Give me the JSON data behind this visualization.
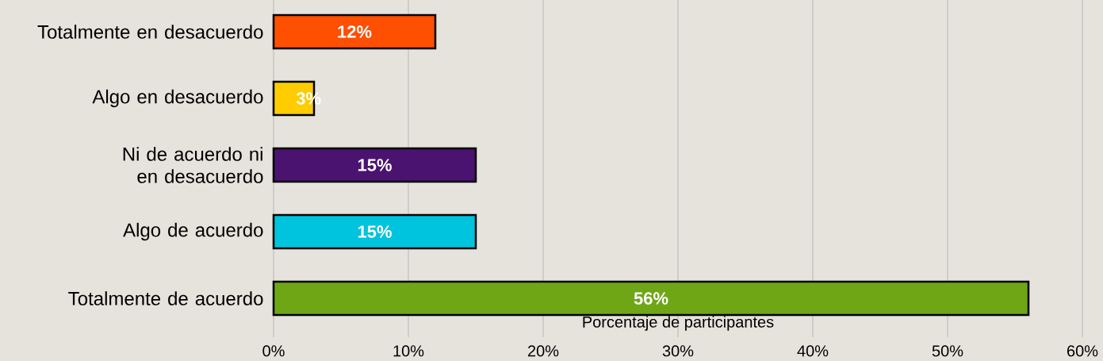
{
  "chart_data": {
    "type": "bar",
    "orientation": "horizontal",
    "categories": [
      "Totalmente en desacuerdo",
      "Algo en desacuerdo",
      "Ni de acuerdo ni en desacuerdo",
      "Algo de acuerdo",
      "Totalmente de acuerdo"
    ],
    "values": [
      12,
      3,
      15,
      15,
      56
    ],
    "colors": [
      "#ff4f00",
      "#ffcc00",
      "#4b1370",
      "#00c3de",
      "#6ea616"
    ],
    "value_labels": [
      "12%",
      "3%",
      "15%",
      "15%",
      "56%"
    ],
    "xlabel": "Porcentaje de participantes",
    "xlim": [
      0,
      60
    ],
    "xticks": [
      {
        "value": 0,
        "label": "0%"
      },
      {
        "value": 10,
        "label": "10%"
      },
      {
        "value": 20,
        "label": "20%"
      },
      {
        "value": 30,
        "label": "30%"
      },
      {
        "value": 40,
        "label": "40%"
      },
      {
        "value": 50,
        "label": "50%"
      },
      {
        "value": 60,
        "label": "60%"
      }
    ],
    "grid": "x"
  }
}
